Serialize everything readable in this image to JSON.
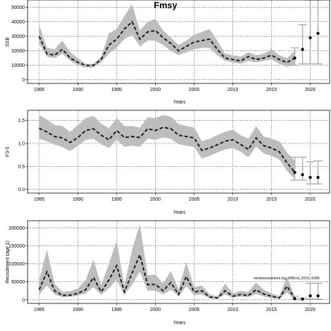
{
  "figure": {
    "title": "Fmsy",
    "watermark": "stockassessment.org, WBcod_2019, r1099"
  },
  "chart_data": [
    {
      "type": "line",
      "ylabel": "SSB",
      "xlabel": "Years",
      "xlim": [
        1983.5,
        2022.5
      ],
      "ylim": [
        -2500,
        55000
      ],
      "xticks": [
        1985,
        1990,
        1995,
        2000,
        2005,
        2010,
        2015,
        2020
      ],
      "yticks": [
        0,
        10000,
        20000,
        30000,
        40000,
        50000
      ],
      "ytick_labels": [
        "0",
        "10000",
        "20000",
        "30000",
        "40000",
        "50000"
      ],
      "grid": true,
      "years": [
        1985,
        1986,
        1987,
        1988,
        1989,
        1990,
        1991,
        1992,
        1993,
        1994,
        1995,
        1996,
        1997,
        1998,
        1999,
        2000,
        2001,
        2002,
        2003,
        2004,
        2005,
        2006,
        2007,
        2008,
        2009,
        2010,
        2011,
        2012,
        2013,
        2014,
        2015,
        2016,
        2017,
        2018
      ],
      "estimate": [
        30000,
        18000,
        17000,
        21000,
        15000,
        12000,
        10000,
        10000,
        14000,
        24000,
        28000,
        35000,
        40000,
        28000,
        33000,
        34000,
        29000,
        25000,
        20000,
        23000,
        26000,
        27000,
        28000,
        21000,
        15000,
        14000,
        13000,
        16000,
        14000,
        15000,
        17000,
        14000,
        12000,
        15000
      ],
      "upper": [
        38000,
        22000,
        21000,
        27000,
        19000,
        15000,
        11000,
        11000,
        16000,
        32000,
        35000,
        44000,
        52000,
        34000,
        40000,
        42000,
        34000,
        29000,
        24000,
        27000,
        31000,
        33000,
        35000,
        27000,
        18000,
        17000,
        16000,
        19000,
        17000,
        18000,
        21000,
        17000,
        15000,
        20000
      ],
      "lower": [
        25000,
        16000,
        15000,
        18000,
        13000,
        10000,
        8500,
        8500,
        12000,
        18000,
        22000,
        28000,
        31000,
        23000,
        27000,
        27000,
        24000,
        20000,
        17000,
        19000,
        21000,
        22000,
        22000,
        17000,
        13000,
        12000,
        11000,
        13000,
        12000,
        13000,
        14000,
        11000,
        9000,
        10000
      ],
      "forecast": [
        {
          "year": 2018,
          "value": 15000,
          "low": 10000,
          "high": 22000
        },
        {
          "year": 2019,
          "value": 21000,
          "low": 11000,
          "high": 38000
        },
        {
          "year": 2020,
          "value": 29000,
          "low": 11000,
          "high": 55000
        },
        {
          "year": 2021,
          "value": 32000,
          "low": 11000,
          "high": 55000
        }
      ]
    },
    {
      "type": "line",
      "ylabel": "F3-5",
      "xlabel": "Years",
      "xlim": [
        1983.5,
        2022.5
      ],
      "ylim": [
        -0.08,
        1.72
      ],
      "xticks": [
        1985,
        1990,
        1995,
        2000,
        2005,
        2010,
        2015,
        2020
      ],
      "yticks": [
        0,
        0.5,
        1.0,
        1.5
      ],
      "ytick_labels": [
        "0.0",
        "0.5",
        "1.0",
        "1.5"
      ],
      "grid": true,
      "years": [
        1985,
        1986,
        1987,
        1988,
        1989,
        1990,
        1991,
        1992,
        1993,
        1994,
        1995,
        1996,
        1997,
        1998,
        1999,
        2000,
        2001,
        2002,
        2003,
        2004,
        2005,
        2006,
        2007,
        2008,
        2009,
        2010,
        2011,
        2012,
        2013,
        2014,
        2015,
        2016,
        2017,
        2018
      ],
      "estimate": [
        1.33,
        1.25,
        1.15,
        1.12,
        1.02,
        1.13,
        1.28,
        1.32,
        1.18,
        1.08,
        1.28,
        1.13,
        1.15,
        1.13,
        1.32,
        1.28,
        1.35,
        1.32,
        1.18,
        1.15,
        1.12,
        0.85,
        0.9,
        0.97,
        1.05,
        1.08,
        0.98,
        0.87,
        1.12,
        0.95,
        0.9,
        0.82,
        0.58,
        0.37
      ],
      "upper": [
        1.62,
        1.52,
        1.4,
        1.38,
        1.25,
        1.4,
        1.55,
        1.6,
        1.43,
        1.33,
        1.55,
        1.38,
        1.38,
        1.35,
        1.57,
        1.55,
        1.62,
        1.58,
        1.42,
        1.38,
        1.35,
        1.05,
        1.1,
        1.18,
        1.25,
        1.3,
        1.18,
        1.1,
        1.38,
        1.15,
        1.1,
        1.05,
        0.8,
        0.62
      ],
      "lower": [
        1.1,
        1.05,
        0.97,
        0.92,
        0.83,
        0.95,
        1.08,
        1.1,
        0.98,
        0.9,
        1.08,
        0.93,
        0.95,
        0.93,
        1.1,
        1.08,
        1.13,
        1.1,
        0.98,
        0.95,
        0.92,
        0.67,
        0.73,
        0.8,
        0.87,
        0.9,
        0.82,
        0.7,
        0.93,
        0.78,
        0.73,
        0.65,
        0.4,
        0.23
      ],
      "forecast": [
        {
          "year": 2018,
          "value": 0.37,
          "low": 0.2,
          "high": 0.7
        },
        {
          "year": 2019,
          "value": 0.32,
          "low": 0.2,
          "high": 0.7
        },
        {
          "year": 2020,
          "value": 0.26,
          "low": 0.12,
          "high": 0.6
        },
        {
          "year": 2021,
          "value": 0.26,
          "low": 0.12,
          "high": 0.62
        }
      ]
    },
    {
      "type": "line",
      "ylabel": "Recruitment (age 1)",
      "xlabel": "Years",
      "xlim": [
        1983.5,
        2022.5
      ],
      "ylim": [
        -10000,
        220000
      ],
      "xticks": [
        1985,
        1990,
        1995,
        2000,
        2005,
        2010,
        2015,
        2020
      ],
      "yticks": [
        0,
        50000,
        100000,
        150000,
        200000
      ],
      "ytick_labels": [
        "0",
        "50000",
        "100000",
        "150000",
        "200000"
      ],
      "grid": true,
      "years": [
        1985,
        1986,
        1987,
        1988,
        1989,
        1990,
        1991,
        1992,
        1993,
        1994,
        1995,
        1996,
        1997,
        1998,
        1999,
        2000,
        2001,
        2002,
        2003,
        2004,
        2005,
        2006,
        2007,
        2008,
        2009,
        2010,
        2011,
        2012,
        2013,
        2014,
        2015,
        2016,
        2017,
        2018
      ],
      "estimate": [
        28000,
        78000,
        25000,
        12000,
        13000,
        18000,
        28000,
        62000,
        22000,
        55000,
        95000,
        22000,
        75000,
        125000,
        42000,
        43000,
        25000,
        48000,
        15000,
        65000,
        22000,
        25000,
        8000,
        5000,
        25000,
        10000,
        15000,
        12000,
        28000,
        16000,
        10000,
        5000,
        38000,
        3000
      ],
      "upper": [
        55000,
        140000,
        45000,
        22000,
        24000,
        32000,
        55000,
        112000,
        40000,
        100000,
        165000,
        40000,
        140000,
        210000,
        68000,
        70000,
        45000,
        80000,
        30000,
        105000,
        35000,
        40000,
        15000,
        10000,
        45000,
        18000,
        25000,
        22000,
        48000,
        28000,
        18000,
        10000,
        65000,
        10000
      ],
      "lower": [
        14000,
        40000,
        15000,
        8000,
        8000,
        12000,
        18000,
        35000,
        14000,
        32000,
        55000,
        14000,
        42000,
        78000,
        25000,
        26000,
        15000,
        28000,
        9000,
        38000,
        13000,
        15000,
        4000,
        2500,
        15000,
        6000,
        9000,
        7000,
        16000,
        9000,
        5000,
        2500,
        20000,
        1000
      ],
      "forecast": [
        {
          "year": 2018,
          "value": 3000,
          "low": 1000,
          "high": 10000
        },
        {
          "year": 2019,
          "value": 2000,
          "low": 500,
          "high": 5000
        },
        {
          "year": 2020,
          "value": 11000,
          "low": 2000,
          "high": 46000
        },
        {
          "year": 2021,
          "value": 11000,
          "low": 2000,
          "high": 46000
        }
      ]
    }
  ]
}
